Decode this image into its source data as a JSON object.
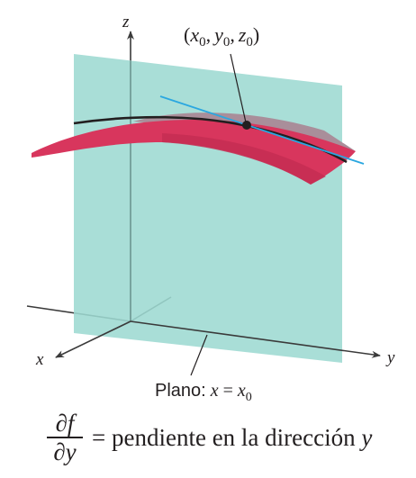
{
  "axes": {
    "x_label": "x",
    "y_label": "y",
    "z_label": "z"
  },
  "point": {
    "x_sym": "x",
    "y_sym": "y",
    "z_sym": "z",
    "sub": "0",
    "open": "(",
    "close": ")",
    "comma": ","
  },
  "plane_label": {
    "prefix": "Plano:",
    "var": "x",
    "equals": "=",
    "rhs_var": "x",
    "rhs_sub": "0"
  },
  "caption": {
    "numerator": "∂f",
    "denominator": "∂y",
    "equals": "=",
    "text": "pendiente en la dirección",
    "var": "y"
  },
  "colors": {
    "plane": "#9dd9d2",
    "surface": "#d8365d",
    "surface_back": "#a98e9a",
    "tangent": "#2aa7e0",
    "curve": "#231f20",
    "axis": "#3a3a3a"
  }
}
